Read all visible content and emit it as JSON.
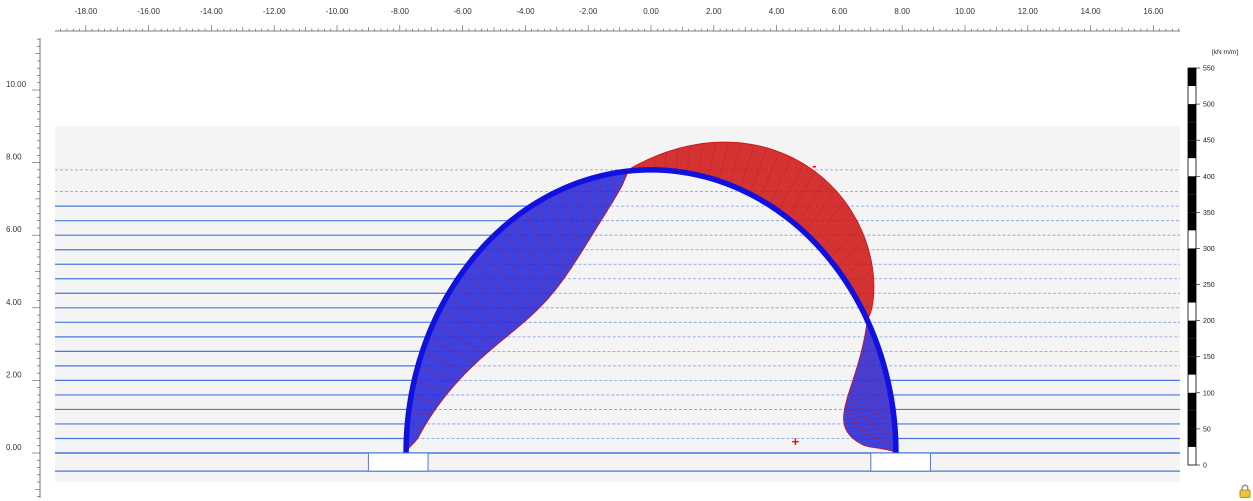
{
  "viewport": {
    "x_ticks": [
      "-18.00",
      "-16.00",
      "-14.00",
      "-12.00",
      "-10.00",
      "-8.00",
      "-6.00",
      "-4.00",
      "-2.00",
      "0.00",
      "2.00",
      "4.00",
      "6.00",
      "8.00",
      "10.00",
      "12.00",
      "14.00",
      "16.00"
    ],
    "x_tick_values": [
      -18,
      -16,
      -14,
      -12,
      -10,
      -8,
      -6,
      -4,
      -2,
      0,
      2,
      4,
      6,
      8,
      10,
      12,
      14,
      16
    ],
    "y_ticks": [
      "10.00",
      "8.00",
      "6.00",
      "4.00",
      "2.00",
      "0.00"
    ],
    "y_tick_values": [
      10,
      8,
      6,
      4,
      2,
      0
    ]
  },
  "legend": {
    "unit": "[kN m/m]",
    "labels": [
      "550",
      "500",
      "450",
      "400",
      "350",
      "300",
      "250",
      "200",
      "150",
      "100",
      "50",
      "0"
    ],
    "values": [
      550,
      500,
      450,
      400,
      350,
      300,
      250,
      200,
      150,
      100,
      50,
      0
    ]
  },
  "structure": {
    "arch_center_x": 0,
    "arch_radius": 7.8,
    "arch_color": "#1010e0",
    "soil_layer_y": [
      0.4,
      0.8,
      1.2,
      1.6,
      2.0,
      2.4,
      2.8,
      3.2,
      3.6,
      4.0,
      4.4,
      4.8,
      5.2,
      5.6,
      6.0,
      6.4,
      6.8
    ],
    "layer_color": "#4a78e0"
  },
  "moment_diagram": {
    "positive_color": "#cc1111",
    "negative_color": "#2020d8",
    "sign_markers": [
      {
        "symbol": "-",
        "x": 5.2,
        "y": 7.9
      },
      {
        "symbol": "+",
        "x": 4.6,
        "y": 0.3
      }
    ]
  },
  "icons": {
    "lock": "lock-icon"
  }
}
